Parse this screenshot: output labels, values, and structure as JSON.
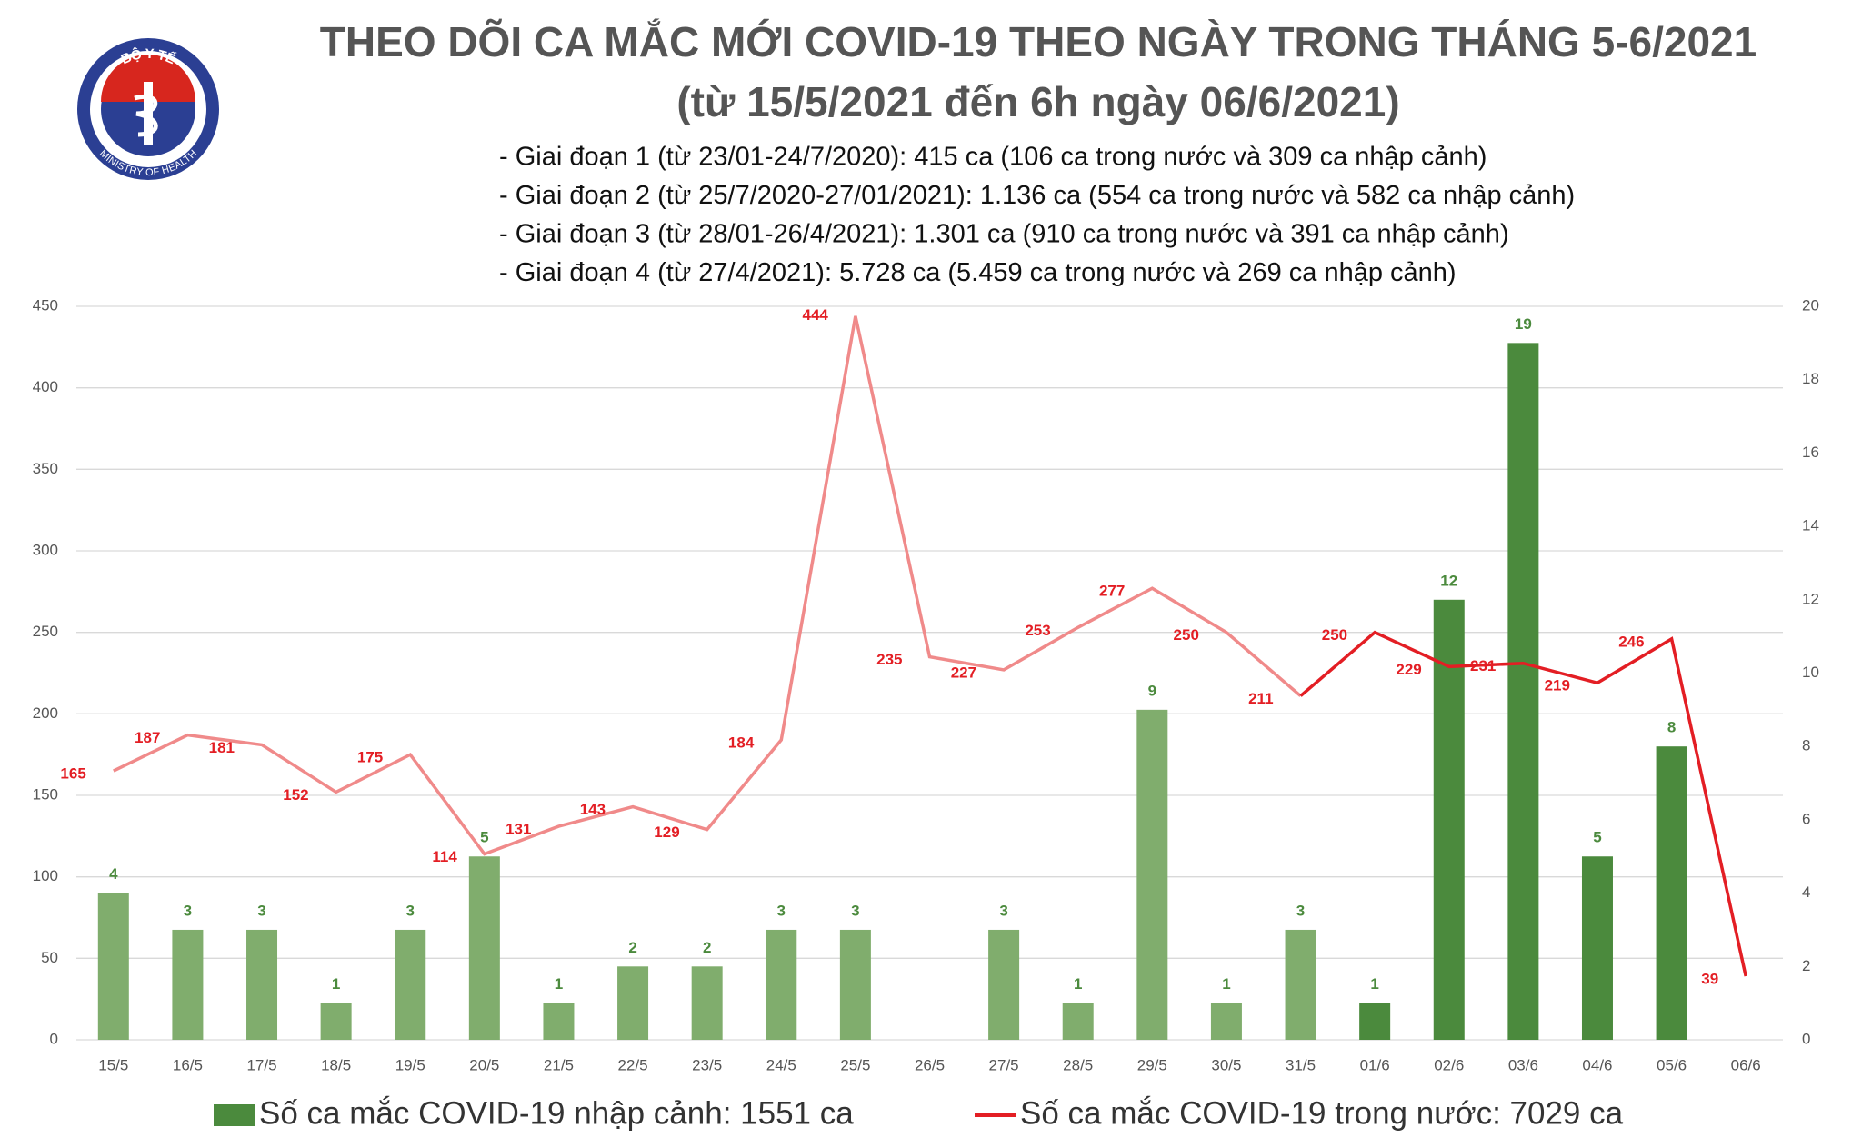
{
  "logo": {
    "top": "BỘ Y TẾ",
    "bottom": "MINISTRY OF HEALTH"
  },
  "chart_data": {
    "type": "bar-line",
    "title": [
      "THEO DÕI CA MẮC MỚI COVID-19 THEO NGÀY TRONG THÁNG 5-6/2021",
      "(từ 15/5/2021 đến 6h ngày 06/6/2021)"
    ],
    "subtitle": [
      "- Giai đoạn 1 (từ 23/01-24/7/2020): 415 ca (106 ca trong nước và 309 ca nhập cảnh)",
      "- Giai đoạn 2 (từ 25/7/2020-27/01/2021): 1.136 ca (554 ca trong nước và 582 ca nhập cảnh)",
      "- Giai đoạn 3 (từ 28/01-26/4/2021): 1.301 ca (910 ca trong nước và 391 ca nhập cảnh)",
      "- Giai đoạn 4 (từ 27/4/2021): 5.728 ca (5.459 ca trong nước và 269 ca nhập cảnh)"
    ],
    "categories": [
      "15/5",
      "16/5",
      "17/5",
      "18/5",
      "19/5",
      "20/5",
      "21/5",
      "22/5",
      "23/5",
      "24/5",
      "25/5",
      "26/5",
      "27/5",
      "28/5",
      "29/5",
      "30/5",
      "31/5",
      "01/6",
      "02/6",
      "03/6",
      "04/6",
      "05/6",
      "06/6"
    ],
    "series": [
      {
        "name": "Số ca mắc COVID-19 nhập cảnh: 1551 ca",
        "type": "bar",
        "axis": "y2",
        "color": "#4b8a3d",
        "colors": [
          "#80ad6d",
          "#80ad6d",
          "#80ad6d",
          "#80ad6d",
          "#80ad6d",
          "#80ad6d",
          "#80ad6d",
          "#80ad6d",
          "#80ad6d",
          "#80ad6d",
          "#80ad6d",
          "#80ad6d",
          "#80ad6d",
          "#80ad6d",
          "#80ad6d",
          "#80ad6d",
          "#80ad6d",
          "#4b8a3d",
          "#4b8a3d",
          "#4b8a3d",
          "#4b8a3d",
          "#4b8a3d",
          "#4b8a3d"
        ],
        "values": [
          4,
          3,
          3,
          1,
          3,
          5,
          1,
          2,
          2,
          3,
          3,
          null,
          3,
          1,
          9,
          1,
          3,
          1,
          12,
          19,
          5,
          8,
          null
        ]
      },
      {
        "name": "Số ca mắc COVID-19 trong nước: 7029 ca",
        "type": "line",
        "color": "#e31e24",
        "colors": [
          "#f08a8a",
          "#f08a8a",
          "#f08a8a",
          "#f08a8a",
          "#f08a8a",
          "#f08a8a",
          "#f08a8a",
          "#f08a8a",
          "#f08a8a",
          "#f08a8a",
          "#f08a8a",
          "#f08a8a",
          "#f08a8a",
          "#f08a8a",
          "#f08a8a",
          "#f08a8a",
          "#f08a8a",
          "#e31e24",
          "#e31e24",
          "#e31e24",
          "#e31e24",
          "#e31e24",
          "#e31e24"
        ],
        "values": [
          165,
          187,
          181,
          152,
          175,
          114,
          131,
          143,
          129,
          184,
          444,
          235,
          227,
          253,
          277,
          250,
          211,
          250,
          229,
          231,
          219,
          246,
          39
        ]
      }
    ],
    "ylim": [
      0,
      450
    ],
    "yticks": [
      0,
      50,
      100,
      150,
      200,
      250,
      300,
      350,
      400,
      450
    ],
    "y2lim": [
      0,
      20
    ],
    "y2ticks": [
      0,
      2,
      4,
      6,
      8,
      10,
      12,
      14,
      16,
      18,
      20
    ],
    "grid": true,
    "legend": "bottom"
  }
}
